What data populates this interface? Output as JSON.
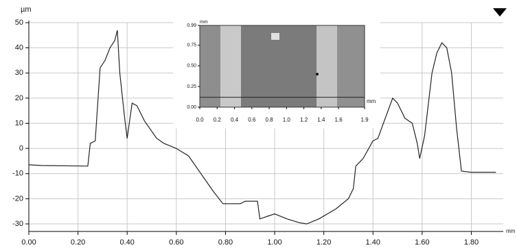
{
  "chart_data": [
    {
      "type": "line",
      "y_unit": "µm",
      "x_unit": "mm",
      "x": [
        0.0,
        0.05,
        0.24,
        0.25,
        0.27,
        0.29,
        0.31,
        0.33,
        0.35,
        0.36,
        0.37,
        0.39,
        0.4,
        0.42,
        0.44,
        0.47,
        0.52,
        0.55,
        0.6,
        0.65,
        0.7,
        0.75,
        0.79,
        0.82,
        0.86,
        0.88,
        0.93,
        0.94,
        0.97,
        1.0,
        1.05,
        1.1,
        1.13,
        1.18,
        1.25,
        1.3,
        1.32,
        1.33,
        1.36,
        1.4,
        1.42,
        1.45,
        1.48,
        1.5,
        1.53,
        1.56,
        1.58,
        1.59,
        1.61,
        1.64,
        1.66,
        1.68,
        1.7,
        1.72,
        1.74,
        1.76,
        1.8,
        1.9
      ],
      "series": [
        {
          "color": "#222222",
          "values": [
            -6.5,
            -6.8,
            -7,
            2,
            3,
            32,
            35,
            40,
            43,
            47,
            30,
            12,
            4,
            18,
            17,
            11,
            4,
            2,
            0,
            -3,
            -10,
            -17,
            -22,
            -22,
            -22,
            -21,
            -21,
            -28,
            -27,
            -26,
            -28,
            -29.5,
            -30,
            -28,
            -24,
            -20,
            -16,
            -7,
            -4,
            3,
            4,
            12,
            20,
            18,
            12,
            10,
            2,
            -4,
            5,
            30,
            38,
            42,
            40,
            30,
            8,
            -9,
            -9.5,
            -9.5
          ]
        }
      ],
      "xlim": [
        0,
        1.93
      ],
      "ylim": [
        -33,
        50
      ],
      "xticks": [
        {
          "value": 0,
          "label": "0.00"
        },
        {
          "value": 0.2,
          "label": "0.20"
        },
        {
          "value": 0.4,
          "label": "0.40"
        },
        {
          "value": 0.6,
          "label": "0.60"
        },
        {
          "value": 0.8,
          "label": "0.80"
        },
        {
          "value": 1,
          "label": "1.00"
        },
        {
          "value": 1.2,
          "label": "1.20"
        },
        {
          "value": 1.4,
          "label": "1.40"
        },
        {
          "value": 1.6,
          "label": "1.60"
        },
        {
          "value": 1.8,
          "label": "1.80"
        }
      ],
      "yticks": [
        50,
        40,
        30,
        20,
        10,
        0,
        -10,
        -20,
        -30
      ],
      "grid": true
    },
    {
      "type": "image",
      "x_unit": "mm",
      "y_unit": "mm",
      "xlim": [
        0,
        1.9
      ],
      "ylim": [
        0,
        0.99
      ],
      "profile_line": 0.12,
      "xticks": [
        {
          "value": 0,
          "label": "0.0"
        },
        {
          "value": 0.2,
          "label": "0.2"
        },
        {
          "value": 0.4,
          "label": "0.4"
        },
        {
          "value": 0.6,
          "label": "0.6"
        },
        {
          "value": 0.8,
          "label": "0.8"
        },
        {
          "value": 1,
          "label": "1.0"
        },
        {
          "value": 1.2,
          "label": "1.2"
        },
        {
          "value": 1.4,
          "label": "1.4"
        },
        {
          "value": 1.6,
          "label": "1.6"
        },
        {
          "value": 1.9,
          "label": "1.9"
        }
      ],
      "yticks": [
        {
          "value": 0,
          "label": "0.00"
        },
        {
          "value": 0.25,
          "label": "0.25"
        },
        {
          "value": 0.5,
          "label": "0.50"
        },
        {
          "value": 0.75,
          "label": "0.75"
        },
        {
          "value": 0.99,
          "label": "0.99"
        }
      ]
    }
  ]
}
